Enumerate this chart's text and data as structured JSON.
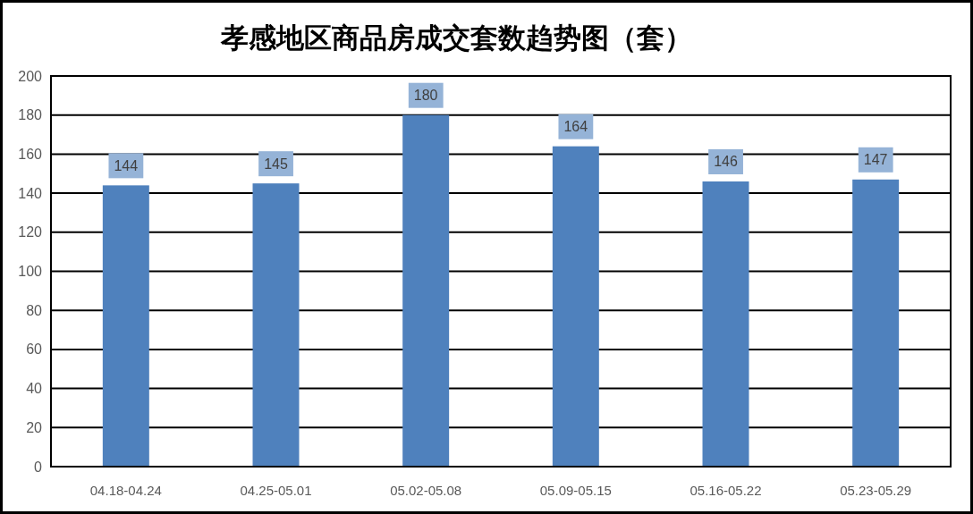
{
  "chart_data": {
    "type": "bar",
    "title": "孝感地区商品房成交套数趋势图（套）",
    "categories": [
      "04.18-04.24",
      "04.25-05.01",
      "05.02-05.08",
      "05.09-05.15",
      "05.16-05.22",
      "05.23-05.29"
    ],
    "values": [
      144,
      145,
      180,
      164,
      146,
      147
    ],
    "color": "#4f81bd",
    "ylim": [
      0,
      200
    ],
    "yticks": [
      0,
      20,
      40,
      60,
      80,
      100,
      120,
      140,
      160,
      180,
      200
    ],
    "grid": "y",
    "data_labels": true
  }
}
